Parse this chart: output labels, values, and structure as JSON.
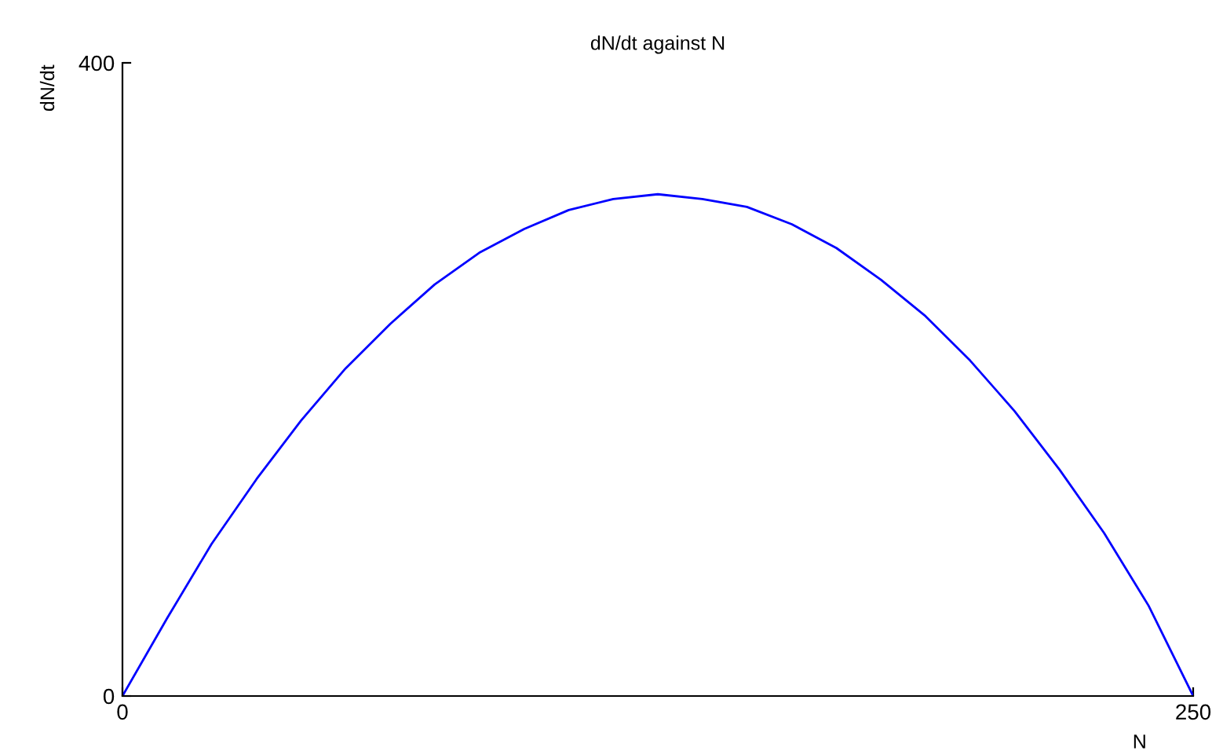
{
  "chart_data": {
    "type": "line",
    "title": "dN/dt against N",
    "xlabel": "N",
    "ylabel": "dN/dt",
    "x": [
      0,
      10.4,
      20.8,
      31.3,
      41.7,
      52.1,
      62.5,
      72.9,
      83.3,
      93.8,
      104.2,
      114.6,
      125,
      135.4,
      145.8,
      156.3,
      166.7,
      177.1,
      187.5,
      197.9,
      208.3,
      218.8,
      229.2,
      239.6,
      250
    ],
    "series": [
      {
        "color": "#0000ff",
        "values": [
          0,
          49,
          96,
          137,
          174,
          207,
          235,
          260,
          280,
          295,
          307,
          314,
          317,
          314,
          309,
          298,
          283,
          263,
          240,
          212,
          180,
          143,
          103,
          57,
          0
        ]
      }
    ],
    "xlim": [
      0,
      250
    ],
    "ylim": [
      0,
      400
    ],
    "xticks": [
      0,
      250
    ],
    "yticks": [
      0,
      400
    ],
    "grid": false,
    "legend": false,
    "marker": "none",
    "line_style": "solid"
  }
}
